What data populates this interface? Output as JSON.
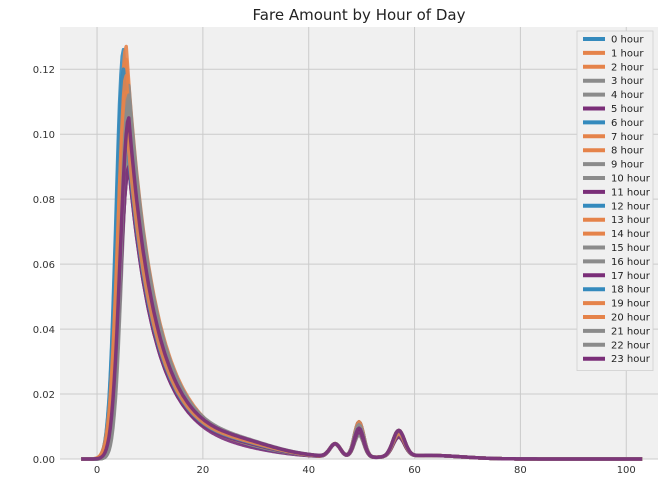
{
  "chart_data": {
    "type": "line",
    "title": "Fare Amount by Hour of Day",
    "xlabel": "",
    "ylabel": "",
    "xlim": [
      -7,
      106
    ],
    "ylim": [
      0,
      0.133
    ],
    "x_ticks": [
      0,
      20,
      40,
      60,
      80,
      100
    ],
    "y_ticks": [
      0.0,
      0.02,
      0.04,
      0.06,
      0.08,
      0.1,
      0.12
    ],
    "x_tick_labels": [
      "0",
      "20",
      "40",
      "60",
      "80",
      "100"
    ],
    "y_tick_labels": [
      "0.00",
      "0.02",
      "0.04",
      "0.06",
      "0.08",
      "0.10",
      "0.12"
    ],
    "grid": true,
    "legend_position": "top-right",
    "background": "#f0f0f0",
    "series_colors": [
      "#348ABD",
      "#E5834A",
      "#E5834A",
      "#8b8b8b",
      "#8b8b8b",
      "#7a2e78"
    ],
    "series": [
      {
        "name": "0 hour",
        "peak_x": 5.0,
        "peak_y": 0.126,
        "p50": 0.0075,
        "p57": 0.006
      },
      {
        "name": "1 hour",
        "peak_x": 5.5,
        "peak_y": 0.127,
        "p50": 0.007,
        "p57": 0.006
      },
      {
        "name": "2 hour",
        "peak_x": 5.5,
        "peak_y": 0.123,
        "p50": 0.007,
        "p57": 0.006
      },
      {
        "name": "3 hour",
        "peak_x": 6.0,
        "peak_y": 0.115,
        "p50": 0.007,
        "p57": 0.006
      },
      {
        "name": "4 hour",
        "peak_x": 6.0,
        "peak_y": 0.105,
        "p50": 0.007,
        "p57": 0.006
      },
      {
        "name": "5 hour",
        "peak_x": 6.0,
        "peak_y": 0.09,
        "p50": 0.008,
        "p57": 0.006
      },
      {
        "name": "6 hour",
        "peak_x": 5.0,
        "peak_y": 0.12,
        "p50": 0.009,
        "p57": 0.007
      },
      {
        "name": "7 hour",
        "peak_x": 5.5,
        "peak_y": 0.118,
        "p50": 0.009,
        "p57": 0.007
      },
      {
        "name": "8 hour",
        "peak_x": 5.5,
        "peak_y": 0.113,
        "p50": 0.009,
        "p57": 0.007
      },
      {
        "name": "9 hour",
        "peak_x": 6.0,
        "peak_y": 0.109,
        "p50": 0.009,
        "p57": 0.007
      },
      {
        "name": "10 hour",
        "peak_x": 6.0,
        "peak_y": 0.104,
        "p50": 0.009,
        "p57": 0.007
      },
      {
        "name": "11 hour",
        "peak_x": 6.0,
        "peak_y": 0.102,
        "p50": 0.009,
        "p57": 0.007
      },
      {
        "name": "12 hour",
        "peak_x": 5.5,
        "peak_y": 0.101,
        "p50": 0.01,
        "p57": 0.007
      },
      {
        "name": "13 hour",
        "peak_x": 5.5,
        "peak_y": 0.1,
        "p50": 0.01,
        "p57": 0.007
      },
      {
        "name": "14 hour",
        "peak_x": 6.0,
        "peak_y": 0.097,
        "p50": 0.01,
        "p57": 0.008
      },
      {
        "name": "15 hour",
        "peak_x": 6.0,
        "peak_y": 0.094,
        "p50": 0.01,
        "p57": 0.008
      },
      {
        "name": "16 hour",
        "peak_x": 6.0,
        "peak_y": 0.092,
        "p50": 0.01,
        "p57": 0.008
      },
      {
        "name": "17 hour",
        "peak_x": 6.0,
        "peak_y": 0.09,
        "p50": 0.011,
        "p57": 0.008
      },
      {
        "name": "18 hour",
        "peak_x": 5.5,
        "peak_y": 0.102,
        "p50": 0.011,
        "p57": 0.008
      },
      {
        "name": "19 hour",
        "peak_x": 5.5,
        "peak_y": 0.104,
        "p50": 0.011,
        "p57": 0.008
      },
      {
        "name": "20 hour",
        "peak_x": 6.0,
        "peak_y": 0.107,
        "p50": 0.01,
        "p57": 0.008
      },
      {
        "name": "21 hour",
        "peak_x": 6.0,
        "peak_y": 0.11,
        "p50": 0.01,
        "p57": 0.008
      },
      {
        "name": "22 hour",
        "peak_x": 6.0,
        "peak_y": 0.112,
        "p50": 0.01,
        "p57": 0.008
      },
      {
        "name": "23 hour",
        "peak_x": 6.0,
        "peak_y": 0.105,
        "p50": 0.009,
        "p57": 0.008
      }
    ]
  }
}
